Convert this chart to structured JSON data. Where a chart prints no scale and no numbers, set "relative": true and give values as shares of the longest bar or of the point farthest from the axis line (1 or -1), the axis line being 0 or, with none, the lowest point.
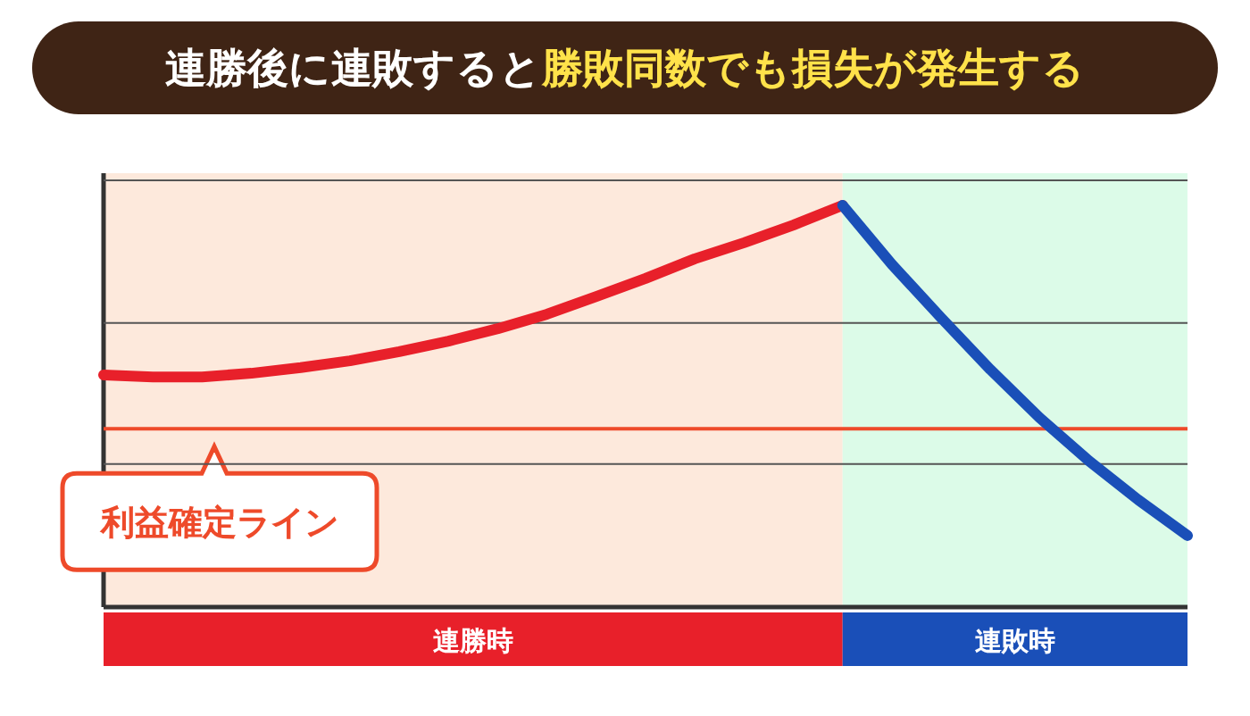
{
  "chart_data": {
    "type": "line",
    "title": "連勝後に連敗すると**勝敗同数でも損失が発生する**",
    "relative": true,
    "legend": false,
    "marker": "none",
    "line_style": "solid",
    "categories": [
      null,
      null,
      null,
      null,
      null,
      null,
      null,
      null,
      null,
      null,
      null,
      null,
      null,
      null,
      null,
      null,
      null,
      null,
      null,
      null,
      null,
      null,
      null
    ],
    "series": [
      {
        "color": "#e8202a",
        "values": [
          0.578,
          0.573,
          0.573,
          0.582,
          0.596,
          0.613,
          0.636,
          0.662,
          0.693,
          0.729,
          0.773,
          0.818,
          0.867,
          0.907,
          0.951,
          1,
          null,
          null,
          null,
          null,
          null,
          null,
          null
        ]
      },
      {
        "color": "#1a4fb8",
        "values": [
          null,
          null,
          null,
          null,
          null,
          null,
          null,
          null,
          null,
          null,
          null,
          null,
          null,
          null,
          null,
          1,
          0.853,
          0.72,
          0.591,
          0.471,
          0.364,
          0.267,
          0.178
        ]
      }
    ],
    "ref_lines": [
      {
        "axis": "y",
        "value": 0.444,
        "label": "利益確定ライン",
        "color": "#ee4a2a"
      },
      {
        "axis": "y",
        "value": 0.356,
        "color": "#555555"
      },
      {
        "axis": "y",
        "value": 0.707,
        "color": "#555555"
      },
      {
        "axis": "y",
        "value": 1.062,
        "color": "#555555"
      }
    ],
    "annotations": [
      "連勝時",
      "連敗時"
    ]
  }
}
